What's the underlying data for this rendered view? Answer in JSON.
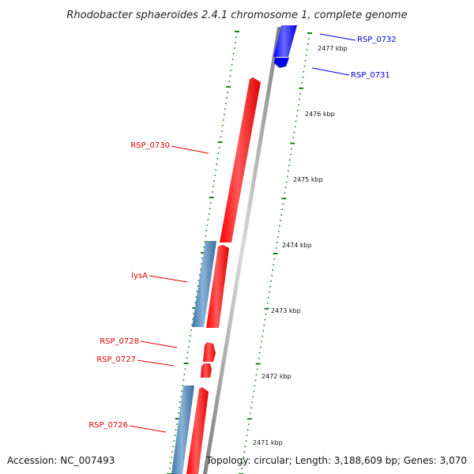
{
  "title": "Rhodobacter sphaeroides 2.4.1 chromosome 1, complete genome",
  "footer": {
    "accession": "Accession: NC_007493",
    "topology": "Topology: circular; Length: 3,188,609 bp; Genes: 3,070"
  },
  "colors": {
    "backbone": "#8c8c8c",
    "backbone_highlight": "#d9d9d9",
    "gene_red": "#ff0000",
    "gene_red_light": "#ff6d6d",
    "gene_blue": "#0000ff",
    "gene_blue_light": "#7a7aff",
    "gene_steel": "#4a7fb0",
    "gene_steel_light": "#8fb6d8",
    "tick": "#138013",
    "label_red": "#e00000",
    "label_blue": "#0000e0"
  },
  "ticks": [
    {
      "label": "2477 kbp"
    },
    {
      "label": "2476 kbp"
    },
    {
      "label": "2475 kbp"
    },
    {
      "label": "2474 kbp"
    },
    {
      "label": "2473 kbp"
    },
    {
      "label": "2472 kbp"
    },
    {
      "label": "2471 kbp"
    }
  ],
  "genes": [
    {
      "name": "RSP_0732",
      "color": "blue"
    },
    {
      "name": "RSP_0731",
      "color": "blue"
    },
    {
      "name": "RSP_0730",
      "color": "red"
    },
    {
      "name": "lysA",
      "color": "red"
    },
    {
      "name": "RSP_0728",
      "color": "red"
    },
    {
      "name": "RSP_0727",
      "color": "red"
    },
    {
      "name": "RSP_0726",
      "color": "red"
    }
  ]
}
